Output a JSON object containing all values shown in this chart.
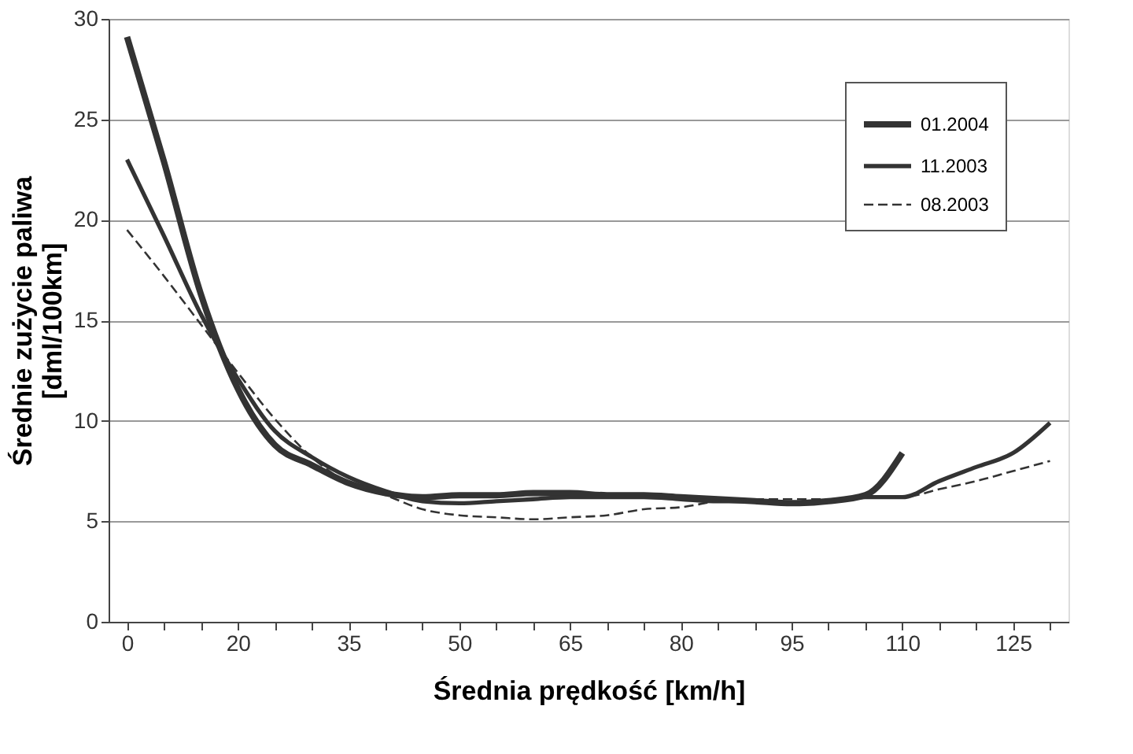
{
  "chart_data": {
    "type": "line",
    "xlabel": "Średnia prędkość [km/h]",
    "ylabel": "Średnie zużycie paliwa [dml/100km]",
    "categories": [
      "0",
      null,
      null,
      "20",
      null,
      null,
      "35",
      null,
      null,
      "50",
      null,
      null,
      "65",
      null,
      null,
      "80",
      null,
      null,
      "95",
      null,
      null,
      "110",
      null,
      null,
      "125",
      null
    ],
    "series": [
      {
        "name": "01.2004",
        "color": "#333333",
        "line_style": "solid",
        "values": [
          29.1,
          22.9,
          16.3,
          11.6,
          8.8,
          7.8,
          6.9,
          6.4,
          6.2,
          6.3,
          6.3,
          6.4,
          6.4,
          6.3,
          6.3,
          6.2,
          6.1,
          6.0,
          5.9,
          6.0,
          6.3,
          8.4,
          null,
          null,
          null,
          null
        ]
      },
      {
        "name": "11.2003",
        "color": "#333333",
        "line_style": "solid",
        "values": [
          23.0,
          19.2,
          15.3,
          12.1,
          9.5,
          8.2,
          7.2,
          6.5,
          6.0,
          5.9,
          6.0,
          6.1,
          6.2,
          6.2,
          6.2,
          6.1,
          6.0,
          6.0,
          5.9,
          6.0,
          6.2,
          6.2,
          7.0,
          7.7,
          8.4,
          9.9
        ]
      },
      {
        "name": "08.2003",
        "color": "#333333",
        "line_style": "dashed",
        "values": [
          19.5,
          17.2,
          14.8,
          12.4,
          10.1,
          8.2,
          6.9,
          6.3,
          5.6,
          5.3,
          5.2,
          5.1,
          5.2,
          5.3,
          5.6,
          5.7,
          6.0,
          6.1,
          6.1,
          6.1,
          6.2,
          6.2,
          6.6,
          7.0,
          7.5,
          8.0
        ]
      }
    ],
    "ylim": [
      0,
      30
    ],
    "yticks": [
      0,
      5,
      10,
      15,
      20,
      25,
      30
    ],
    "grid": "y",
    "legend": "top right",
    "marker": "none"
  }
}
